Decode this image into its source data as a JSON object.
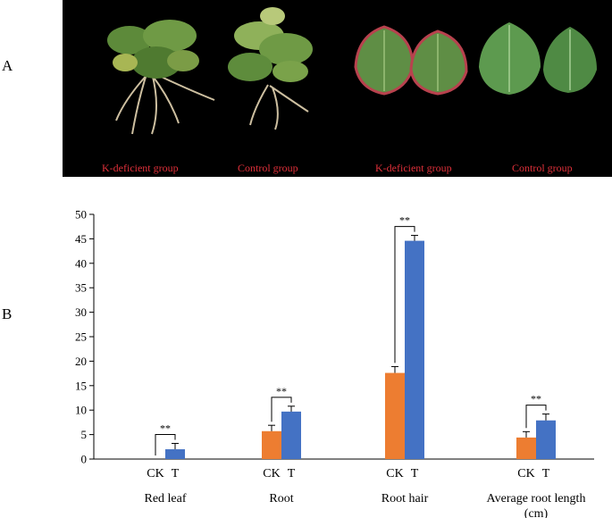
{
  "panels": {
    "a": "A",
    "b": "B"
  },
  "photo": {
    "captions": [
      "K-deficient group",
      "Control group",
      "K-deficient group",
      "Control group"
    ],
    "caption_color": "#e0303a"
  },
  "chart_data": {
    "type": "bar",
    "categories": [
      "Red leaf",
      "Root",
      "Root hair",
      "Average root length (cm)"
    ],
    "group_labels": [
      "Red leaf",
      "Root",
      [
        "Root hair"
      ],
      [
        "Average root length",
        "(cm)"
      ]
    ],
    "bar_labels": [
      "CK",
      "T"
    ],
    "series": [
      {
        "name": "CK",
        "color": "#ed7d31",
        "values": [
          0,
          5.7,
          17.6,
          4.4
        ],
        "errors": [
          0,
          1.2,
          1.3,
          1.2
        ]
      },
      {
        "name": "T",
        "color": "#4472c4",
        "values": [
          2.0,
          9.7,
          44.6,
          7.9
        ],
        "errors": [
          1.2,
          1.1,
          1.1,
          1.3
        ]
      }
    ],
    "significance": [
      "**",
      "**",
      "**",
      "**"
    ],
    "ylim": [
      0,
      50
    ],
    "yticks": [
      0,
      5,
      10,
      15,
      20,
      25,
      30,
      35,
      40,
      45,
      50
    ],
    "xlabel": "",
    "ylabel": ""
  }
}
